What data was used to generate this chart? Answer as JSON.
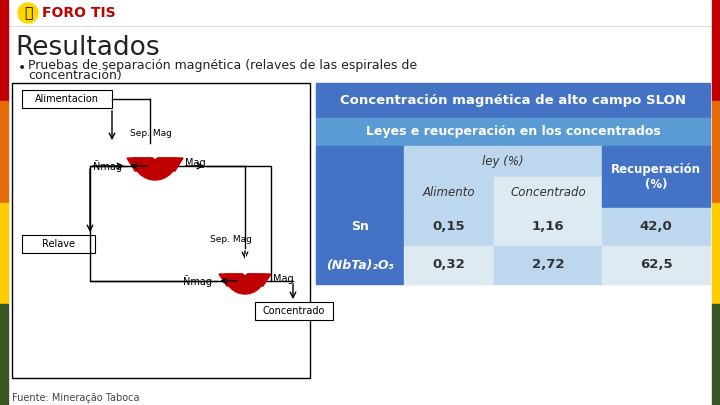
{
  "title": "Resultados",
  "bullet": "Pruebas de separación magnética (relaves de las espirales de",
  "bullet2": "concentración)",
  "foro_tis": "FORO TIS",
  "fuente": "Fuente: Mineração Taboca",
  "table_header1": "Concentración magnética de alto campo SLON",
  "table_header2": "Leyes e reucperación en los concentrados",
  "col_header_ley": "ley (%)",
  "col_header_alimento": "Alimento",
  "col_header_concentrado": "Concentrado",
  "col_header_recuperacion": "Recuperación\n(%)",
  "row1_label": "Sn",
  "row1_alimento": "0,15",
  "row1_concentrado": "1,16",
  "row1_recuperacion": "42,0",
  "row2_label": "(NbTa)₂O₅",
  "row2_alimento": "0,32",
  "row2_concentrado": "2,72",
  "row2_recuperacion": "62,5",
  "color_blue_dark": "#4472C4",
  "color_blue_medium": "#5B9BD5",
  "color_blue_light": "#BDD7EE",
  "color_blue_lighter": "#DEEAF1",
  "color_white": "#FFFFFF",
  "color_red": "#C00000",
  "color_foro": "#C00000",
  "sidebar_colors": [
    "#C00000",
    "#E36C0A",
    "#FFCC00",
    "#375623"
  ],
  "bg_color": "#FFFFFF"
}
